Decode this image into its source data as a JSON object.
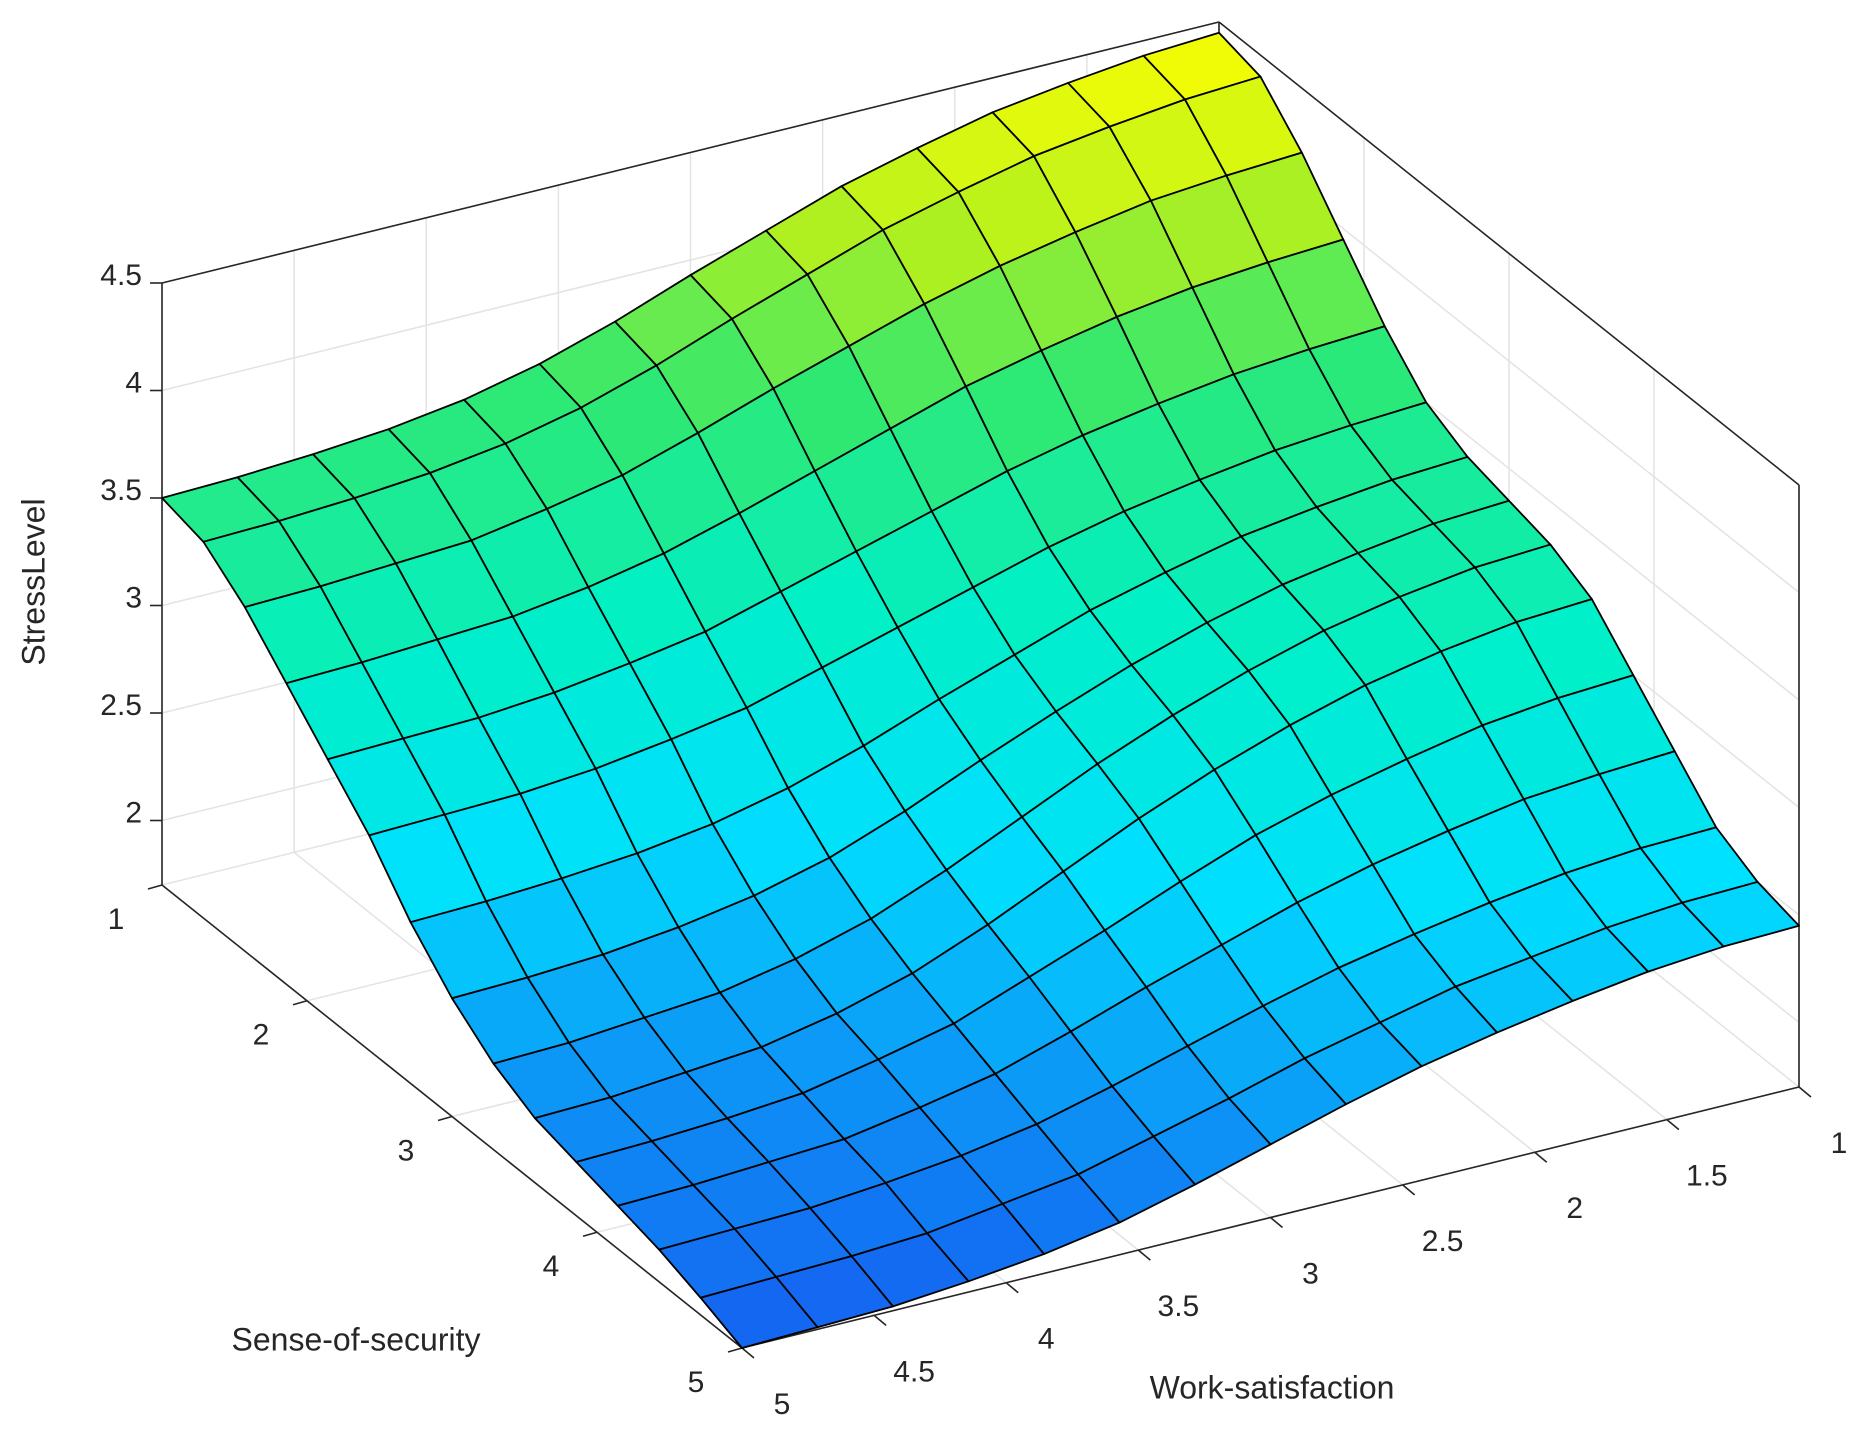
{
  "chart_data": {
    "type": "surface",
    "x_label": "Work-satisfaction",
    "y_label": "Sense-of-security",
    "z_label": "StressLevel",
    "x": [
      1,
      1.2857,
      1.5714,
      1.8571,
      2.1429,
      2.4286,
      2.7143,
      3,
      3.2857,
      3.5714,
      3.8571,
      4.1429,
      4.4286,
      4.7143,
      5
    ],
    "y": [
      1,
      1.2857,
      1.5714,
      1.8571,
      2.1429,
      2.4286,
      2.7143,
      3,
      3.2857,
      3.5714,
      3.8571,
      4.1429,
      4.4286,
      4.7143,
      5
    ],
    "z": [
      [
        4.45,
        4.43,
        4.39,
        4.34,
        4.26,
        4.17,
        4.05,
        3.93,
        3.8,
        3.69,
        3.61,
        3.56,
        3.53,
        3.51,
        3.5
      ],
      [
        4.4,
        4.38,
        4.34,
        4.29,
        4.21,
        4.12,
        4.0,
        3.88,
        3.75,
        3.64,
        3.56,
        3.51,
        3.48,
        3.46,
        3.45
      ],
      [
        4.2,
        4.18,
        4.15,
        4.09,
        4.02,
        3.93,
        3.82,
        3.71,
        3.59,
        3.48,
        3.41,
        3.35,
        3.33,
        3.31,
        3.3
      ],
      [
        3.95,
        3.93,
        3.9,
        3.85,
        3.78,
        3.7,
        3.59,
        3.48,
        3.37,
        3.27,
        3.2,
        3.15,
        3.13,
        3.11,
        3.1
      ],
      [
        3.7,
        3.68,
        3.65,
        3.6,
        3.54,
        3.46,
        3.36,
        3.26,
        3.16,
        3.06,
        3.0,
        2.95,
        2.92,
        2.91,
        2.9
      ],
      [
        3.5,
        3.48,
        3.45,
        3.4,
        3.34,
        3.26,
        3.16,
        3.06,
        2.96,
        2.86,
        2.8,
        2.75,
        2.72,
        2.71,
        2.7
      ],
      [
        3.4,
        3.38,
        3.34,
        3.29,
        3.21,
        3.12,
        3.0,
        2.88,
        2.75,
        2.64,
        2.56,
        2.51,
        2.48,
        2.46,
        2.45
      ],
      [
        3.35,
        3.33,
        3.28,
        3.22,
        3.13,
        3.02,
        2.89,
        2.75,
        2.6,
        2.47,
        2.38,
        2.32,
        2.28,
        2.26,
        2.25
      ],
      [
        3.3,
        3.28,
        3.23,
        3.16,
        3.06,
        2.94,
        2.8,
        2.64,
        2.48,
        2.34,
        2.24,
        2.17,
        2.14,
        2.11,
        2.1
      ],
      [
        3.2,
        3.18,
        3.13,
        3.06,
        2.96,
        2.84,
        2.7,
        2.54,
        2.38,
        2.24,
        2.14,
        2.07,
        2.04,
        2.01,
        2.0
      ],
      [
        3.0,
        2.98,
        2.94,
        2.87,
        2.79,
        2.69,
        2.56,
        2.42,
        2.29,
        2.16,
        2.08,
        2.01,
        1.98,
        1.96,
        1.95
      ],
      [
        2.8,
        2.78,
        2.75,
        2.69,
        2.62,
        2.53,
        2.42,
        2.31,
        2.19,
        2.08,
        2.01,
        1.95,
        1.93,
        1.91,
        1.9
      ],
      [
        2.6,
        2.59,
        2.56,
        2.51,
        2.45,
        2.38,
        2.29,
        2.19,
        2.09,
        2.0,
        1.94,
        1.9,
        1.87,
        1.86,
        1.85
      ],
      [
        2.5,
        2.49,
        2.46,
        2.41,
        2.36,
        2.28,
        2.2,
        2.1,
        2.01,
        1.92,
        1.87,
        1.82,
        1.8,
        1.79,
        1.78
      ],
      [
        2.45,
        2.44,
        2.41,
        2.36,
        2.3,
        2.23,
        2.14,
        2.04,
        1.94,
        1.85,
        1.79,
        1.75,
        1.72,
        1.71,
        1.7
      ]
    ],
    "xlim": [
      1,
      5
    ],
    "ylim": [
      1,
      5
    ],
    "zlim": [
      1.7,
      4.5
    ],
    "xticks": [
      1,
      1.5,
      2,
      2.5,
      3,
      3.5,
      4,
      4.5,
      5
    ],
    "yticks": [
      1,
      2,
      3,
      4,
      5
    ],
    "zticks": [
      2,
      2.5,
      3,
      3.5,
      4,
      4.5
    ],
    "grid": true,
    "colormap": "jet",
    "edge_color": "#000000"
  }
}
